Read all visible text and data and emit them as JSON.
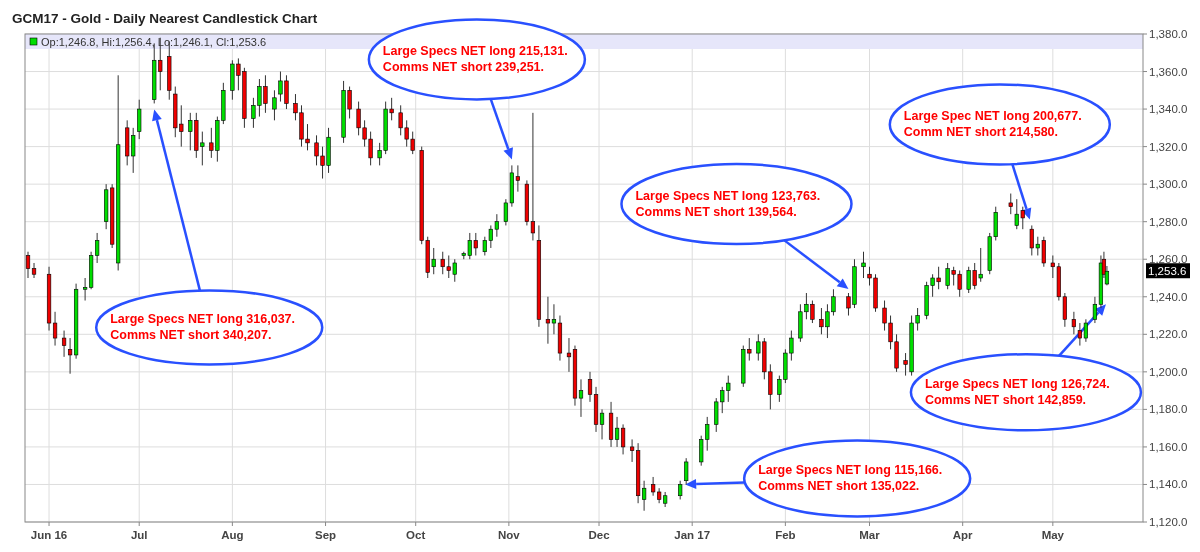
{
  "chart_data": {
    "type": "candlestick",
    "title": "GCM17 - Gold - Daily Nearest Candlestick Chart",
    "subtitle": "Op:1,246.8, Hi:1,256.4, Lo:1,246.1, Cl:1,253.6",
    "x": [
      "2016-05-25",
      "2016-05-27",
      "2016-06-01",
      "2016-06-03",
      "2016-06-06",
      "2016-06-08",
      "2016-06-10",
      "2016-06-13",
      "2016-06-15",
      "2016-06-17",
      "2016-06-20",
      "2016-06-22",
      "2016-06-24",
      "2016-06-27",
      "2016-06-29",
      "2016-07-01",
      "2016-07-06",
      "2016-07-08",
      "2016-07-11",
      "2016-07-13",
      "2016-07-15",
      "2016-07-18",
      "2016-07-20",
      "2016-07-22",
      "2016-07-25",
      "2016-07-27",
      "2016-07-29",
      "2016-08-01",
      "2016-08-03",
      "2016-08-05",
      "2016-08-08",
      "2016-08-10",
      "2016-08-12",
      "2016-08-15",
      "2016-08-17",
      "2016-08-19",
      "2016-08-22",
      "2016-08-24",
      "2016-08-26",
      "2016-08-29",
      "2016-08-31",
      "2016-09-02",
      "2016-09-07",
      "2016-09-09",
      "2016-09-12",
      "2016-09-14",
      "2016-09-16",
      "2016-09-19",
      "2016-09-21",
      "2016-09-23",
      "2016-09-26",
      "2016-09-28",
      "2016-09-30",
      "2016-10-03",
      "2016-10-05",
      "2016-10-07",
      "2016-10-10",
      "2016-10-12",
      "2016-10-14",
      "2016-10-17",
      "2016-10-19",
      "2016-10-21",
      "2016-10-24",
      "2016-10-26",
      "2016-10-28",
      "2016-10-31",
      "2016-11-02",
      "2016-11-04",
      "2016-11-07",
      "2016-11-09",
      "2016-11-11",
      "2016-11-14",
      "2016-11-16",
      "2016-11-18",
      "2016-11-21",
      "2016-11-23",
      "2016-11-25",
      "2016-11-28",
      "2016-11-30",
      "2016-12-02",
      "2016-12-05",
      "2016-12-07",
      "2016-12-09",
      "2016-12-12",
      "2016-12-14",
      "2016-12-16",
      "2016-12-19",
      "2016-12-21",
      "2016-12-23",
      "2016-12-28",
      "2016-12-30",
      "2017-01-04",
      "2017-01-06",
      "2017-01-09",
      "2017-01-11",
      "2017-01-13",
      "2017-01-18",
      "2017-01-20",
      "2017-01-23",
      "2017-01-25",
      "2017-01-27",
      "2017-01-30",
      "2017-02-01",
      "2017-02-03",
      "2017-02-06",
      "2017-02-08",
      "2017-02-10",
      "2017-02-13",
      "2017-02-15",
      "2017-02-17",
      "2017-02-22",
      "2017-02-24",
      "2017-02-27",
      "2017-03-01",
      "2017-03-03",
      "2017-03-06",
      "2017-03-08",
      "2017-03-10",
      "2017-03-13",
      "2017-03-15",
      "2017-03-17",
      "2017-03-20",
      "2017-03-22",
      "2017-03-24",
      "2017-03-27",
      "2017-03-29",
      "2017-03-31",
      "2017-04-03",
      "2017-04-05",
      "2017-04-07",
      "2017-04-10",
      "2017-04-12",
      "2017-04-17",
      "2017-04-19",
      "2017-04-21",
      "2017-04-24",
      "2017-04-26",
      "2017-04-28",
      "2017-05-01",
      "2017-05-03",
      "2017-05-05",
      "2017-05-08",
      "2017-05-10",
      "2017-05-12",
      "2017-05-15",
      "2017-05-17",
      "2017-05-18",
      "2017-05-19"
    ],
    "ohlc": [
      [
        1262,
        1264,
        1250,
        1255
      ],
      [
        1255,
        1258,
        1250,
        1252
      ],
      [
        1252,
        1256,
        1222,
        1226
      ],
      [
        1226,
        1232,
        1214,
        1218
      ],
      [
        1218,
        1222,
        1208,
        1214
      ],
      [
        1212,
        1218,
        1199,
        1209
      ],
      [
        1209,
        1247,
        1207,
        1244
      ],
      [
        1244,
        1250,
        1238,
        1245
      ],
      [
        1245,
        1264,
        1244,
        1262
      ],
      [
        1262,
        1274,
        1258,
        1270
      ],
      [
        1280,
        1300,
        1276,
        1297
      ],
      [
        1298,
        1300,
        1266,
        1268
      ],
      [
        1258,
        1358,
        1254,
        1321
      ],
      [
        1330,
        1334,
        1310,
        1315
      ],
      [
        1315,
        1330,
        1306,
        1326
      ],
      [
        1328,
        1345,
        1324,
        1340
      ],
      [
        1345,
        1375,
        1343,
        1366
      ],
      [
        1366,
        1378,
        1350,
        1360
      ],
      [
        1368,
        1376,
        1345,
        1350
      ],
      [
        1348,
        1352,
        1325,
        1330
      ],
      [
        1332,
        1342,
        1320,
        1328
      ],
      [
        1328,
        1338,
        1318,
        1334
      ],
      [
        1334,
        1338,
        1314,
        1318
      ],
      [
        1320,
        1328,
        1310,
        1322
      ],
      [
        1322,
        1330,
        1314,
        1318
      ],
      [
        1318,
        1336,
        1312,
        1334
      ],
      [
        1334,
        1354,
        1332,
        1350
      ],
      [
        1350,
        1366,
        1345,
        1364
      ],
      [
        1364,
        1367,
        1350,
        1358
      ],
      [
        1360,
        1362,
        1330,
        1335
      ],
      [
        1335,
        1346,
        1330,
        1342
      ],
      [
        1342,
        1356,
        1336,
        1352
      ],
      [
        1352,
        1358,
        1338,
        1343
      ],
      [
        1340,
        1350,
        1334,
        1346
      ],
      [
        1348,
        1360,
        1344,
        1355
      ],
      [
        1355,
        1358,
        1340,
        1343
      ],
      [
        1343,
        1348,
        1334,
        1338
      ],
      [
        1338,
        1342,
        1320,
        1324
      ],
      [
        1324,
        1332,
        1318,
        1322
      ],
      [
        1322,
        1326,
        1310,
        1315
      ],
      [
        1315,
        1320,
        1303,
        1310
      ],
      [
        1310,
        1330,
        1306,
        1325
      ],
      [
        1325,
        1355,
        1322,
        1350
      ],
      [
        1350,
        1352,
        1335,
        1340
      ],
      [
        1340,
        1344,
        1326,
        1330
      ],
      [
        1330,
        1334,
        1320,
        1324
      ],
      [
        1324,
        1328,
        1310,
        1314
      ],
      [
        1314,
        1322,
        1310,
        1318
      ],
      [
        1318,
        1344,
        1316,
        1340
      ],
      [
        1340,
        1346,
        1334,
        1338
      ],
      [
        1338,
        1342,
        1326,
        1330
      ],
      [
        1330,
        1334,
        1320,
        1324
      ],
      [
        1324,
        1328,
        1316,
        1318
      ],
      [
        1318,
        1320,
        1268,
        1270
      ],
      [
        1270,
        1272,
        1250,
        1253
      ],
      [
        1256,
        1266,
        1252,
        1260
      ],
      [
        1260,
        1264,
        1252,
        1256
      ],
      [
        1256,
        1262,
        1250,
        1254
      ],
      [
        1252,
        1260,
        1248,
        1258
      ],
      [
        1262,
        1264,
        1260,
        1263
      ],
      [
        1262,
        1274,
        1260,
        1270
      ],
      [
        1270,
        1274,
        1262,
        1266
      ],
      [
        1264,
        1272,
        1262,
        1270
      ],
      [
        1270,
        1278,
        1266,
        1276
      ],
      [
        1276,
        1284,
        1272,
        1280
      ],
      [
        1280,
        1292,
        1278,
        1290
      ],
      [
        1290,
        1310,
        1288,
        1306
      ],
      [
        1304,
        1310,
        1296,
        1302
      ],
      [
        1300,
        1302,
        1278,
        1280
      ],
      [
        1280,
        1338,
        1270,
        1274
      ],
      [
        1270,
        1278,
        1224,
        1228
      ],
      [
        1228,
        1240,
        1215,
        1226
      ],
      [
        1226,
        1236,
        1220,
        1228
      ],
      [
        1226,
        1230,
        1206,
        1210
      ],
      [
        1210,
        1218,
        1200,
        1208
      ],
      [
        1212,
        1214,
        1182,
        1186
      ],
      [
        1186,
        1196,
        1176,
        1190
      ],
      [
        1196,
        1200,
        1184,
        1188
      ],
      [
        1188,
        1192,
        1168,
        1172
      ],
      [
        1172,
        1180,
        1164,
        1178
      ],
      [
        1178,
        1184,
        1160,
        1164
      ],
      [
        1164,
        1176,
        1160,
        1170
      ],
      [
        1170,
        1172,
        1156,
        1160
      ],
      [
        1160,
        1164,
        1152,
        1158
      ],
      [
        1158,
        1162,
        1130,
        1134
      ],
      [
        1132,
        1142,
        1126,
        1138
      ],
      [
        1140,
        1144,
        1134,
        1136
      ],
      [
        1136,
        1138,
        1130,
        1132
      ],
      [
        1130,
        1136,
        1128,
        1134
      ],
      [
        1134,
        1142,
        1132,
        1140
      ],
      [
        1142,
        1154,
        1140,
        1152
      ],
      [
        1152,
        1166,
        1150,
        1164
      ],
      [
        1164,
        1176,
        1158,
        1172
      ],
      [
        1172,
        1186,
        1168,
        1184
      ],
      [
        1184,
        1192,
        1178,
        1190
      ],
      [
        1190,
        1198,
        1184,
        1194
      ],
      [
        1194,
        1214,
        1192,
        1212
      ],
      [
        1212,
        1218,
        1206,
        1210
      ],
      [
        1210,
        1220,
        1206,
        1216
      ],
      [
        1216,
        1218,
        1196,
        1200
      ],
      [
        1200,
        1204,
        1180,
        1188
      ],
      [
        1188,
        1198,
        1184,
        1196
      ],
      [
        1196,
        1212,
        1194,
        1210
      ],
      [
        1210,
        1222,
        1206,
        1218
      ],
      [
        1218,
        1236,
        1216,
        1232
      ],
      [
        1232,
        1242,
        1228,
        1236
      ],
      [
        1236,
        1238,
        1226,
        1228
      ],
      [
        1228,
        1234,
        1220,
        1224
      ],
      [
        1224,
        1236,
        1218,
        1232
      ],
      [
        1232,
        1244,
        1230,
        1240
      ],
      [
        1240,
        1242,
        1230,
        1234
      ],
      [
        1236,
        1260,
        1234,
        1256
      ],
      [
        1256,
        1264,
        1250,
        1258
      ],
      [
        1252,
        1256,
        1246,
        1250
      ],
      [
        1250,
        1252,
        1232,
        1234
      ],
      [
        1234,
        1238,
        1222,
        1226
      ],
      [
        1226,
        1230,
        1212,
        1216
      ],
      [
        1216,
        1220,
        1200,
        1202
      ],
      [
        1206,
        1210,
        1198,
        1204
      ],
      [
        1200,
        1230,
        1198,
        1226
      ],
      [
        1226,
        1234,
        1222,
        1230
      ],
      [
        1230,
        1248,
        1228,
        1246
      ],
      [
        1246,
        1252,
        1240,
        1250
      ],
      [
        1250,
        1256,
        1244,
        1248
      ],
      [
        1246,
        1258,
        1244,
        1255
      ],
      [
        1254,
        1256,
        1246,
        1252
      ],
      [
        1252,
        1254,
        1240,
        1244
      ],
      [
        1244,
        1256,
        1242,
        1254
      ],
      [
        1254,
        1258,
        1244,
        1246
      ],
      [
        1250,
        1266,
        1248,
        1252
      ],
      [
        1254,
        1274,
        1252,
        1272
      ],
      [
        1272,
        1288,
        1270,
        1285
      ],
      [
        1290,
        1295,
        1284,
        1288
      ],
      [
        1278,
        1292,
        1276,
        1284
      ],
      [
        1286,
        1288,
        1276,
        1282
      ],
      [
        1276,
        1278,
        1262,
        1266
      ],
      [
        1266,
        1272,
        1262,
        1268
      ],
      [
        1270,
        1272,
        1256,
        1258
      ],
      [
        1258,
        1262,
        1250,
        1256
      ],
      [
        1256,
        1258,
        1238,
        1240
      ],
      [
        1240,
        1242,
        1224,
        1228
      ],
      [
        1228,
        1232,
        1220,
        1224
      ],
      [
        1222,
        1226,
        1214,
        1218
      ],
      [
        1218,
        1228,
        1216,
        1226
      ],
      [
        1228,
        1240,
        1226,
        1236
      ],
      [
        1236,
        1262,
        1234,
        1258
      ],
      [
        1260,
        1264,
        1250,
        1252
      ],
      [
        1246.8,
        1256.4,
        1246.1,
        1253.6
      ]
    ],
    "xlim": [
      "2016-05-24",
      "2017-05-31"
    ],
    "xticks": [
      {
        "value": "2016-06-01",
        "label": "Jun 16"
      },
      {
        "value": "2016-07-01",
        "label": "Jul"
      },
      {
        "value": "2016-08-01",
        "label": "Aug"
      },
      {
        "value": "2016-09-01",
        "label": "Sep"
      },
      {
        "value": "2016-10-01",
        "label": "Oct"
      },
      {
        "value": "2016-11-01",
        "label": "Nov"
      },
      {
        "value": "2016-12-01",
        "label": "Dec"
      },
      {
        "value": "2017-01-01",
        "label": "Jan 17"
      },
      {
        "value": "2017-02-01",
        "label": "Feb"
      },
      {
        "value": "2017-03-01",
        "label": "Mar"
      },
      {
        "value": "2017-04-01",
        "label": "Apr"
      },
      {
        "value": "2017-05-01",
        "label": "May"
      }
    ],
    "ylim": [
      1120,
      1380
    ],
    "yticks": [
      {
        "value": 1120,
        "label": "1,120.0"
      },
      {
        "value": 1140,
        "label": "1,140.0"
      },
      {
        "value": 1160,
        "label": "1,160.0"
      },
      {
        "value": 1180,
        "label": "1,180.0"
      },
      {
        "value": 1200,
        "label": "1,200.0"
      },
      {
        "value": 1220,
        "label": "1,220.0"
      },
      {
        "value": 1240,
        "label": "1,240.0"
      },
      {
        "value": 1260,
        "label": "1,260.0"
      },
      {
        "value": 1280,
        "label": "1,280.0"
      },
      {
        "value": 1300,
        "label": "1,300.0"
      },
      {
        "value": 1320,
        "label": "1,320.0"
      },
      {
        "value": 1340,
        "label": "1,340.0"
      },
      {
        "value": 1360,
        "label": "1,360.0"
      },
      {
        "value": 1380,
        "label": "1,380.0"
      }
    ],
    "grid": true,
    "annotations": [
      "Large Specs NET long 316,037.\nComms NET short 340,207.",
      "Large Specs NET long 215,131.\nComms NET short 239,251.",
      "Large Specs NET long 123,763.\nComms NET short 139,564.",
      "Large Specs NET long 115,166.\nComms NET short 135,022.",
      "Large Spec NET long 200,677.\nComm NET short 214,580.",
      "Large Specs NET long 126,724.\nComms NET short 142,859.",
      "1,253.6"
    ]
  }
}
